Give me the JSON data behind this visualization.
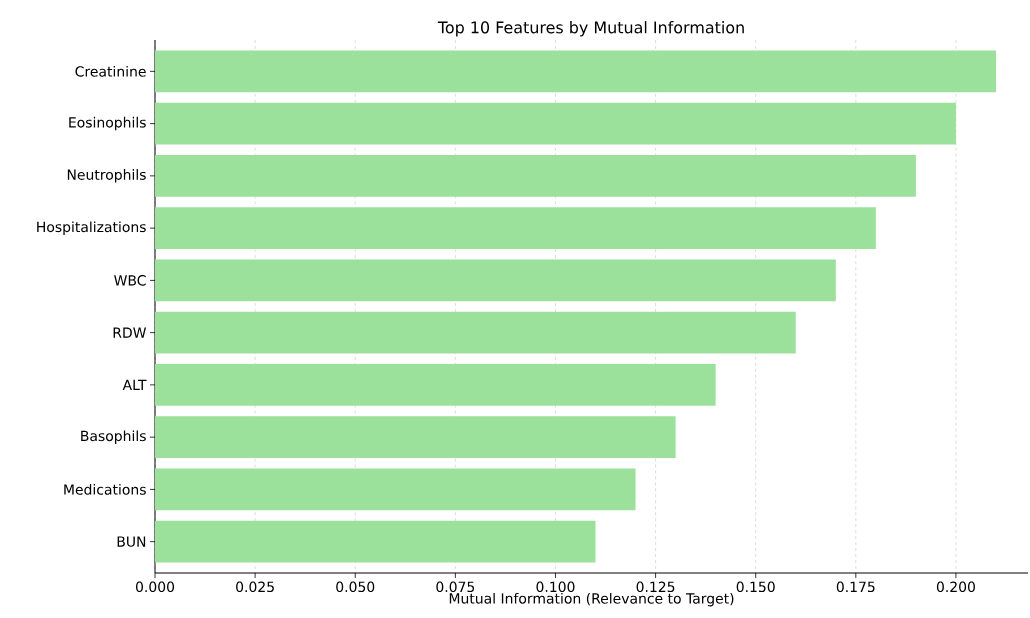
{
  "chart_data": {
    "type": "bar",
    "orientation": "horizontal",
    "title": "Top 10 Features by Mutual Information",
    "xlabel": "Mutual Information (Relevance to Target)",
    "categories": [
      "Creatinine",
      "Eosinophils",
      "Neutrophils",
      "Hospitalizations",
      "WBC",
      "RDW",
      "ALT",
      "Basophils",
      "Medications",
      "BUN"
    ],
    "values": [
      0.21,
      0.2,
      0.19,
      0.18,
      0.17,
      0.16,
      0.14,
      0.13,
      0.12,
      0.11
    ],
    "color": "#9be09b",
    "xlim": [
      0,
      0.218
    ],
    "xticks": [
      {
        "value": 0,
        "label": "0.000"
      },
      0.025,
      {
        "value": 0.05,
        "label": "0.050"
      },
      0.075,
      {
        "value": 0.1,
        "label": "0.100"
      },
      0.125,
      {
        "value": 0.15,
        "label": "0.150"
      },
      0.175,
      {
        "value": 0.2,
        "label": "0.200"
      }
    ],
    "grid": "x"
  }
}
